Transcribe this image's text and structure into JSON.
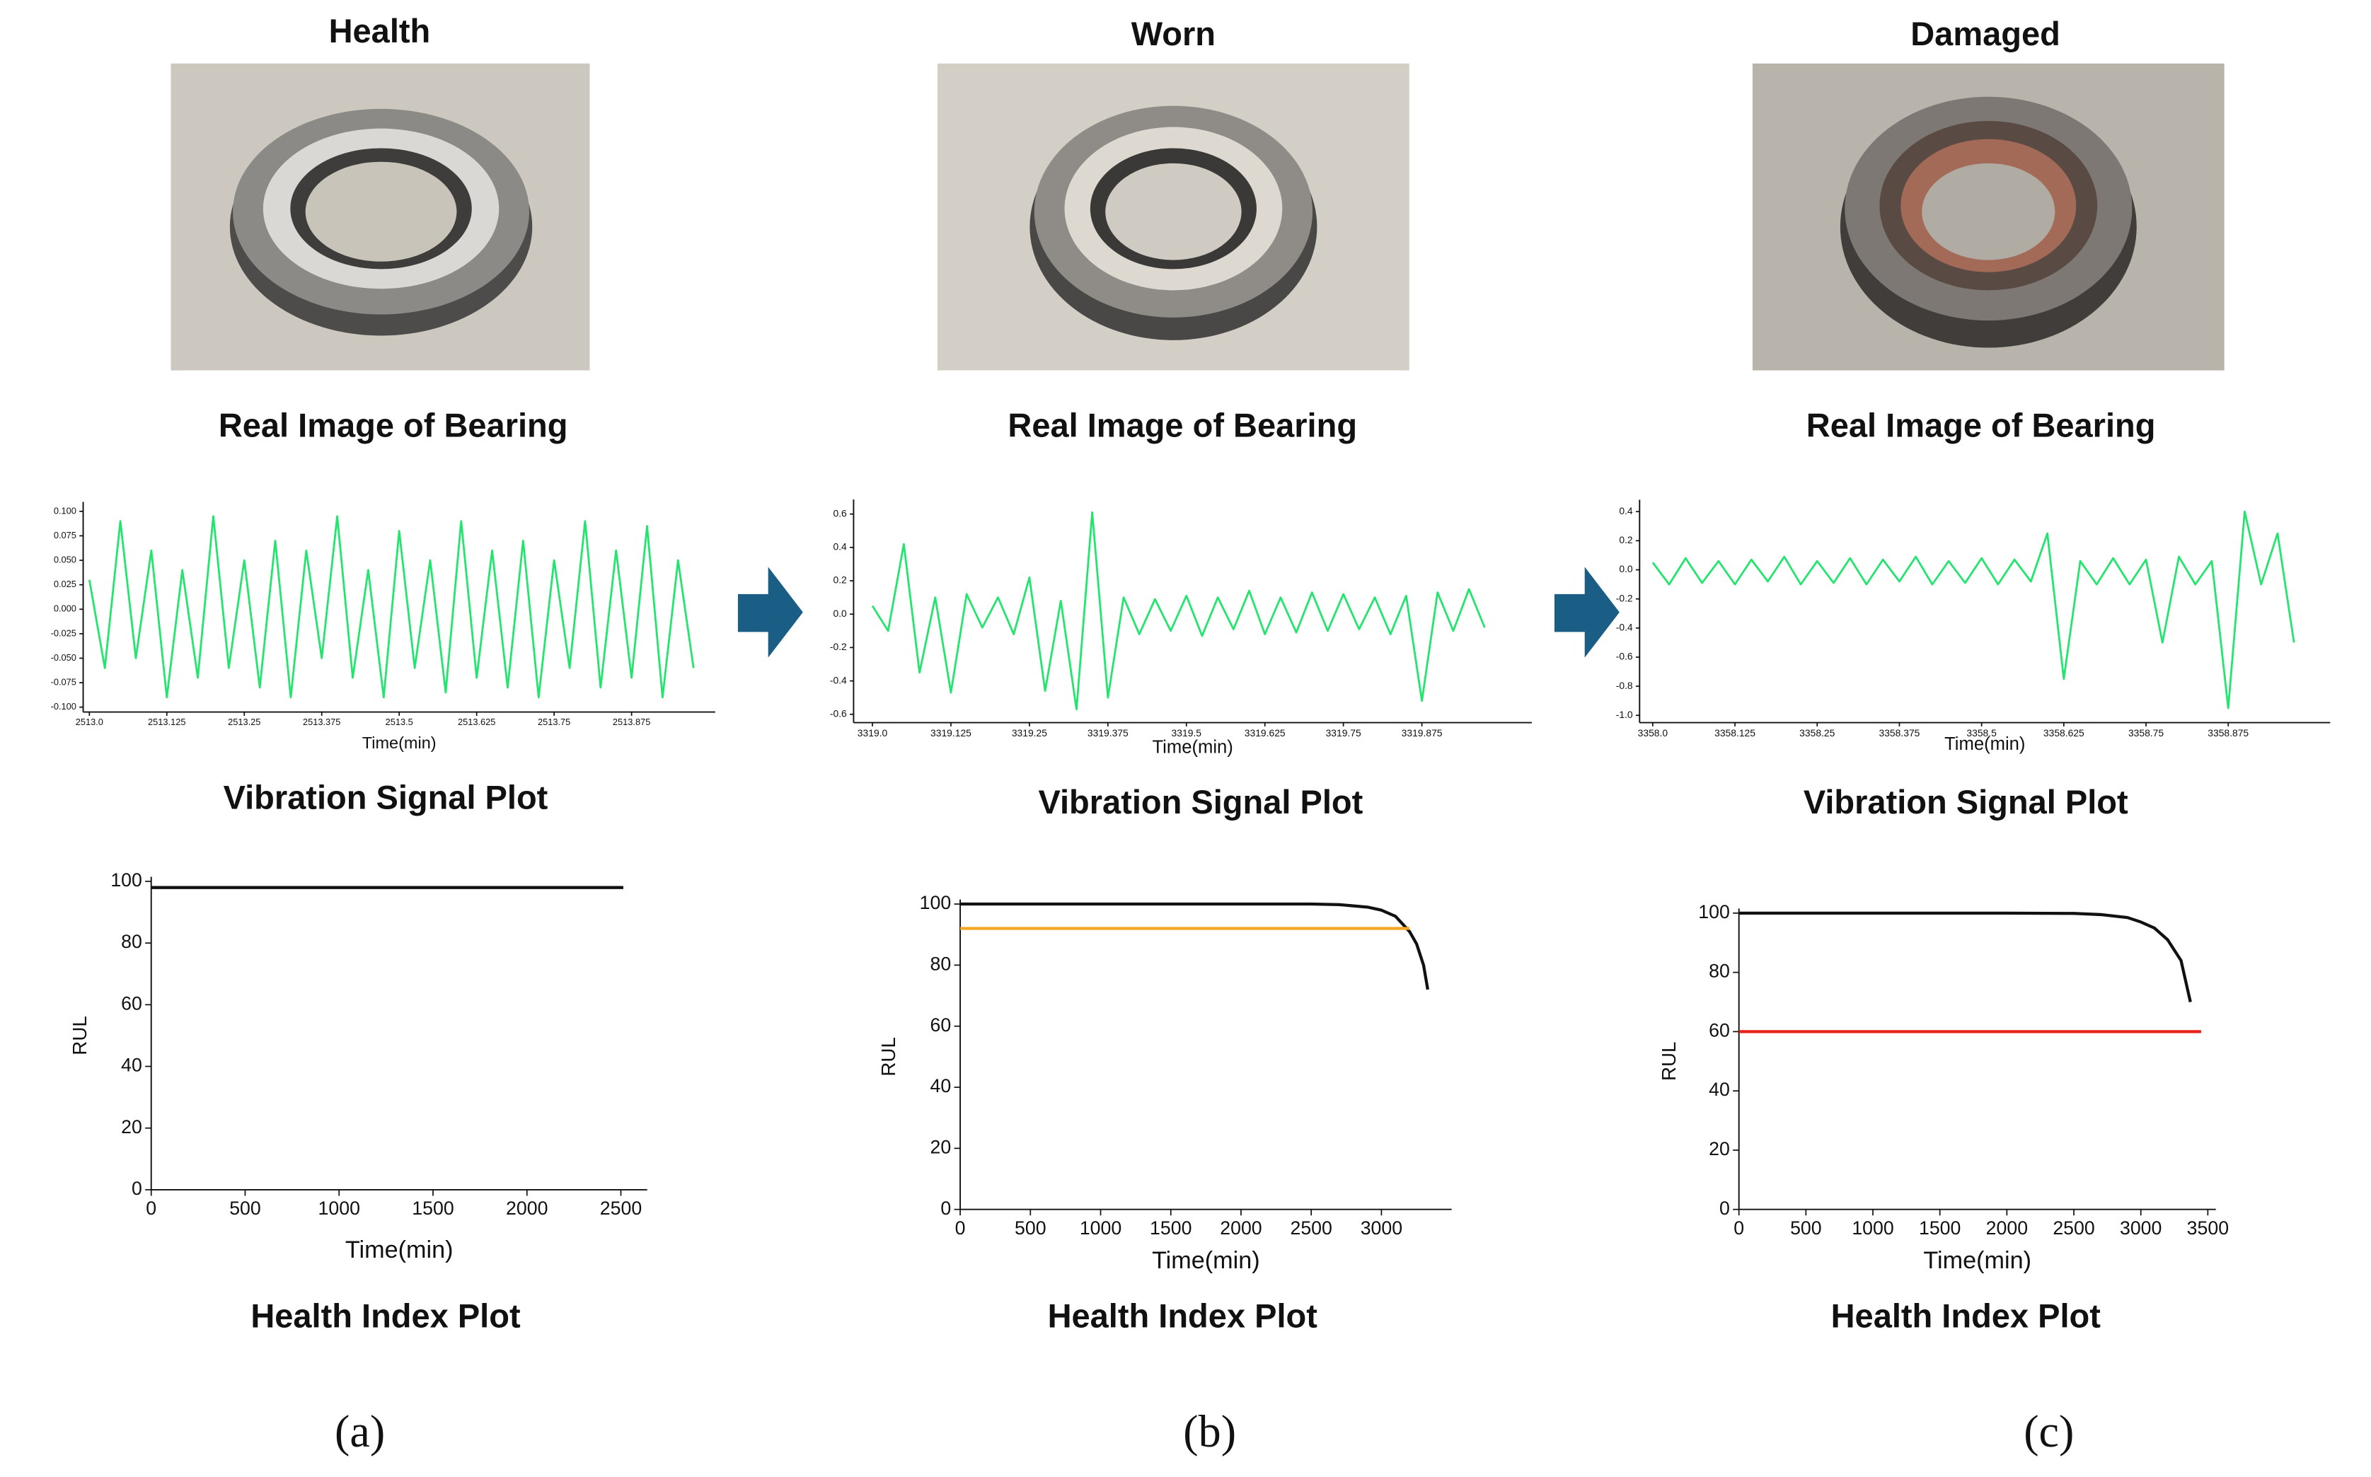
{
  "panels": [
    {
      "title": "Health",
      "image_caption": "Real Image of Bearing",
      "label": "(a)"
    },
    {
      "title": "Worn",
      "image_caption": "Real Image of Bearing",
      "label": "(b)"
    },
    {
      "title": "Damaged",
      "image_caption": "Real Image of Bearing",
      "label": "(c)"
    }
  ],
  "chart_data": [
    {
      "type": "line",
      "title": "Vibration Signal Plot",
      "x_label": "Time(min)",
      "xlim": [
        2512.99,
        2514.01
      ],
      "ylim": [
        -0.105,
        0.105
      ],
      "xticks": [
        {
          "value": 2513.0,
          "label": "2513.0"
        },
        2513.125,
        2513.25,
        2513.375,
        {
          "value": 2513.5,
          "label": "2513.5"
        },
        2513.625,
        2513.75,
        2513.875
      ],
      "yticks": [
        {
          "value": 0.1,
          "label": "0.100"
        },
        {
          "value": 0.075,
          "label": "0.075"
        },
        {
          "value": 0.05,
          "label": "0.050"
        },
        {
          "value": 0.025,
          "label": "0.025"
        },
        {
          "value": 0,
          "label": "0.000"
        },
        {
          "value": -0.025,
          "label": "-0.025"
        },
        {
          "value": -0.05,
          "label": "-0.050"
        },
        {
          "value": -0.075,
          "label": "-0.075"
        },
        {
          "value": -0.1,
          "label": "-0.100"
        }
      ],
      "series": [
        {
          "color": "#22e56d",
          "x": [
            2513.0,
            2513.025,
            2513.05,
            2513.075,
            2513.1,
            2513.125,
            2513.15,
            2513.175,
            2513.2,
            2513.225,
            2513.25,
            2513.275,
            2513.3,
            2513.325,
            2513.35,
            2513.375,
            2513.4,
            2513.425,
            2513.45,
            2513.475,
            2513.5,
            2513.525,
            2513.55,
            2513.575,
            2513.6,
            2513.625,
            2513.65,
            2513.675,
            2513.7,
            2513.725,
            2513.75,
            2513.775,
            2513.8,
            2513.825,
            2513.85,
            2513.875,
            2513.9,
            2513.925,
            2513.95,
            2513.975
          ],
          "values": [
            0.03,
            -0.06,
            0.09,
            -0.05,
            0.06,
            -0.09,
            0.04,
            -0.07,
            0.095,
            -0.06,
            0.05,
            -0.08,
            0.07,
            -0.09,
            0.06,
            -0.05,
            0.095,
            -0.07,
            0.04,
            -0.09,
            0.08,
            -0.06,
            0.05,
            -0.085,
            0.09,
            -0.07,
            0.06,
            -0.08,
            0.07,
            -0.09,
            0.05,
            -0.06,
            0.09,
            -0.08,
            0.06,
            -0.07,
            0.085,
            -0.09,
            0.05,
            -0.06
          ]
        }
      ]
    },
    {
      "type": "line",
      "title": "Vibration Signal Plot",
      "x_label": "Time(min)",
      "xlim": [
        3318.97,
        3320.05
      ],
      "ylim": [
        -0.65,
        0.66
      ],
      "xticks": [
        {
          "value": 3319.0,
          "label": "3319.0"
        },
        3319.125,
        3319.25,
        3319.375,
        {
          "value": 3319.5,
          "label": "3319.5"
        },
        3319.625,
        3319.75,
        3319.875
      ],
      "yticks": [
        -0.6,
        -0.4,
        -0.2,
        {
          "value": 0,
          "label": "0.0"
        },
        0.2,
        0.4,
        0.6
      ],
      "series": [
        {
          "color": "#22e56d",
          "x": [
            3319.0,
            3319.025,
            3319.05,
            3319.075,
            3319.1,
            3319.125,
            3319.15,
            3319.175,
            3319.2,
            3319.225,
            3319.25,
            3319.275,
            3319.3,
            3319.325,
            3319.35,
            3319.375,
            3319.4,
            3319.425,
            3319.45,
            3319.475,
            3319.5,
            3319.525,
            3319.55,
            3319.575,
            3319.6,
            3319.625,
            3319.65,
            3319.675,
            3319.7,
            3319.725,
            3319.75,
            3319.775,
            3319.8,
            3319.825,
            3319.85,
            3319.875,
            3319.9,
            3319.925,
            3319.95,
            3319.975
          ],
          "values": [
            0.05,
            -0.1,
            0.42,
            -0.35,
            0.1,
            -0.47,
            0.12,
            -0.08,
            0.1,
            -0.12,
            0.22,
            -0.46,
            0.08,
            -0.57,
            0.61,
            -0.5,
            0.1,
            -0.12,
            0.09,
            -0.1,
            0.11,
            -0.13,
            0.1,
            -0.09,
            0.14,
            -0.12,
            0.1,
            -0.11,
            0.13,
            -0.1,
            0.12,
            -0.09,
            0.1,
            -0.12,
            0.11,
            -0.52,
            0.13,
            -0.1,
            0.15,
            -0.08
          ]
        }
      ]
    },
    {
      "type": "line",
      "title": "Vibration Signal Plot",
      "x_label": "Time(min)",
      "xlim": [
        3357.98,
        3359.03
      ],
      "ylim": [
        -1.05,
        0.45
      ],
      "xticks": [
        {
          "value": 3358.0,
          "label": "3358.0"
        },
        3358.125,
        3358.25,
        3358.375,
        3358.5,
        3358.625,
        3358.75,
        3358.875
      ],
      "yticks": [
        {
          "value": -1,
          "label": "-1.0"
        },
        -0.8,
        -0.6,
        -0.4,
        -0.2,
        {
          "value": 0,
          "label": "0.0"
        },
        0.2,
        0.4
      ],
      "series": [
        {
          "color": "#22e56d",
          "x": [
            3358.0,
            3358.025,
            3358.05,
            3358.075,
            3358.1,
            3358.125,
            3358.15,
            3358.175,
            3358.2,
            3358.225,
            3358.25,
            3358.275,
            3358.3,
            3358.325,
            3358.35,
            3358.375,
            3358.4,
            3358.425,
            3358.45,
            3358.475,
            3358.5,
            3358.525,
            3358.55,
            3358.575,
            3358.6,
            3358.625,
            3358.65,
            3358.675,
            3358.7,
            3358.725,
            3358.75,
            3358.775,
            3358.8,
            3358.825,
            3358.85,
            3358.875,
            3358.9,
            3358.925,
            3358.95,
            3358.975
          ],
          "values": [
            0.05,
            -0.1,
            0.08,
            -0.09,
            0.06,
            -0.1,
            0.07,
            -0.08,
            0.09,
            -0.1,
            0.06,
            -0.09,
            0.08,
            -0.1,
            0.07,
            -0.08,
            0.09,
            -0.1,
            0.06,
            -0.09,
            0.08,
            -0.1,
            0.07,
            -0.08,
            0.25,
            -0.75,
            0.06,
            -0.1,
            0.08,
            -0.1,
            0.07,
            -0.5,
            0.09,
            -0.1,
            0.06,
            -0.95,
            0.4,
            -0.1,
            0.25,
            -0.5
          ]
        }
      ]
    },
    {
      "type": "line",
      "title": "Health Index Plot",
      "x_label": "Time(min)",
      "y_label": "RUL",
      "xlim": [
        0,
        2640
      ],
      "ylim": [
        0,
        100
      ],
      "xticks": [
        0,
        500,
        1000,
        1500,
        2000,
        2500
      ],
      "yticks": [
        0,
        20,
        40,
        60,
        80,
        100
      ],
      "series": [
        {
          "color": "#111111",
          "x": [
            0,
            2513
          ],
          "values": [
            98,
            98
          ]
        }
      ]
    },
    {
      "type": "line",
      "title": "Health Index Plot",
      "x_label": "Time(min)",
      "y_label": "RUL",
      "xlim": [
        0,
        3500
      ],
      "ylim": [
        0,
        100
      ],
      "xticks": [
        0,
        500,
        1000,
        1500,
        2000,
        2500,
        3000
      ],
      "yticks": [
        0,
        20,
        40,
        60,
        80,
        100
      ],
      "series": [
        {
          "color": "#111111",
          "x": [
            0,
            1000,
            2000,
            2500,
            2700,
            2900,
            3000,
            3100,
            3200,
            3250,
            3300,
            3330
          ],
          "values": [
            100,
            100,
            100,
            100,
            99.8,
            99,
            98,
            96,
            91,
            87,
            80,
            72
          ]
        },
        {
          "color": "#f5a623",
          "x": [
            0,
            3200
          ],
          "values": [
            92,
            92
          ]
        }
      ]
    },
    {
      "type": "line",
      "title": "Health Index Plot",
      "x_label": "Time(min)",
      "y_label": "RUL",
      "xlim": [
        0,
        3560
      ],
      "ylim": [
        0,
        100
      ],
      "xticks": [
        0,
        500,
        1000,
        1500,
        2000,
        2500,
        3000,
        3500
      ],
      "yticks": [
        0,
        20,
        40,
        60,
        80,
        100
      ],
      "series": [
        {
          "color": "#111111",
          "x": [
            0,
            1000,
            2000,
            2500,
            2700,
            2900,
            3000,
            3100,
            3200,
            3300,
            3370
          ],
          "values": [
            100,
            100,
            100,
            99.9,
            99.5,
            98.5,
            97,
            95,
            91,
            84,
            70
          ]
        },
        {
          "color": "#e8201a",
          "x": [
            0,
            3450
          ],
          "values": [
            60,
            60
          ]
        }
      ]
    }
  ]
}
